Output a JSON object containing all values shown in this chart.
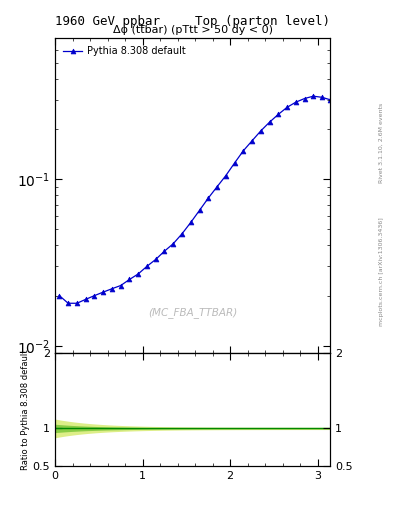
{
  "title_left": "1960 GeV ppbar",
  "title_right": "Top (parton level)",
  "main_title": "Δφ (tt̅bar) (pTtt > 50 dy < 0)",
  "legend_label": "Pythia 8.308 default",
  "watermark": "(MC_FBA_TTBAR)",
  "right_label_1": "Rivet 3.1.10, 2.6M events",
  "right_label_2": "mcplots.cern.ch [arXiv:1306.3436]",
  "xlabel": "",
  "ylabel_ratio": "Ratio to Pythia 8.308 default",
  "xlim": [
    0,
    3.14159
  ],
  "ylim_main": [
    0.009,
    0.7
  ],
  "ylim_ratio": [
    0.5,
    2.0
  ],
  "x_data": [
    0.05,
    0.15,
    0.25,
    0.35,
    0.45,
    0.55,
    0.65,
    0.75,
    0.85,
    0.95,
    1.05,
    1.15,
    1.25,
    1.35,
    1.45,
    1.55,
    1.65,
    1.75,
    1.85,
    1.95,
    2.05,
    2.15,
    2.25,
    2.35,
    2.45,
    2.55,
    2.65,
    2.75,
    2.85,
    2.95,
    3.05,
    3.14
  ],
  "y_data": [
    0.02,
    0.018,
    0.018,
    0.019,
    0.02,
    0.021,
    0.022,
    0.023,
    0.025,
    0.027,
    0.03,
    0.033,
    0.037,
    0.041,
    0.047,
    0.055,
    0.065,
    0.077,
    0.09,
    0.105,
    0.125,
    0.148,
    0.17,
    0.195,
    0.22,
    0.245,
    0.27,
    0.29,
    0.305,
    0.315,
    0.31,
    0.3
  ],
  "line_color": "#0000cc",
  "marker": "^",
  "marker_size": 3.5,
  "ratio_band_inner_color": "#88cc44",
  "ratio_band_outer_color": "#ddee88",
  "ratio_line_color": "#008800",
  "background_color": "#ffffff"
}
